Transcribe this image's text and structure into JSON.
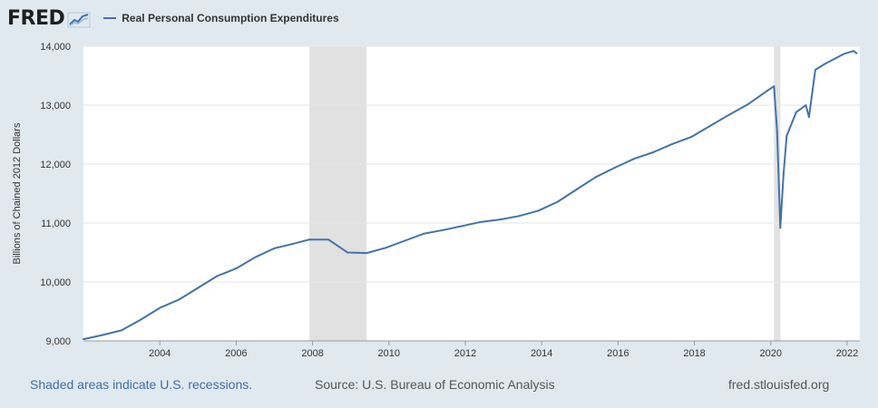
{
  "brand": {
    "logo_text": "FRED",
    "logo_icon": "fred-chart-icon"
  },
  "colors": {
    "series": "#4572a7",
    "recession": "#e1e1e1",
    "background": "#e1e9f0",
    "plot": "#ffffff",
    "grid": "#e6e6e6"
  },
  "chart_data": {
    "type": "line",
    "title": "",
    "xlabel": "",
    "ylabel": "Billions of Chained 2012 Dollars",
    "ylim": [
      9000,
      14000
    ],
    "xlim": [
      2002.0,
      2022.333
    ],
    "x_ticks": [
      2004,
      2006,
      2008,
      2010,
      2012,
      2014,
      2016,
      2018,
      2020,
      2022
    ],
    "x_tick_labels": [
      "2004",
      "2006",
      "2008",
      "2010",
      "2012",
      "2014",
      "2016",
      "2018",
      "2020",
      "2022"
    ],
    "y_ticks": [
      9000,
      10000,
      11000,
      12000,
      13000,
      14000
    ],
    "y_tick_labels": [
      "9,000",
      "10,000",
      "11,000",
      "12,000",
      "13,000",
      "14,000"
    ],
    "grid": true,
    "legend_position": "top-left",
    "recessions": [
      {
        "start": "2007-12",
        "end": "2009-06"
      },
      {
        "start": "2020-02",
        "end": "2020-04"
      }
    ],
    "series": [
      {
        "name": "Real Personal Consumption Expenditures",
        "x": [
          "2002-01",
          "2002-07",
          "2003-01",
          "2003-07",
          "2004-01",
          "2004-07",
          "2005-01",
          "2005-07",
          "2006-01",
          "2006-07",
          "2007-01",
          "2007-07",
          "2007-12",
          "2008-06",
          "2008-12",
          "2009-06",
          "2009-12",
          "2010-06",
          "2010-12",
          "2011-06",
          "2011-12",
          "2012-06",
          "2012-12",
          "2013-06",
          "2013-12",
          "2014-06",
          "2014-12",
          "2015-06",
          "2015-12",
          "2016-06",
          "2016-12",
          "2017-06",
          "2017-12",
          "2018-06",
          "2018-12",
          "2019-06",
          "2019-12",
          "2020-02",
          "2020-03",
          "2020-04",
          "2020-05",
          "2020-06",
          "2020-09",
          "2020-12",
          "2021-01",
          "2021-03",
          "2021-06",
          "2021-12",
          "2022-03",
          "2022-04"
        ],
        "y": [
          9030,
          9100,
          9180,
          9360,
          9560,
          9700,
          9900,
          10100,
          10230,
          10420,
          10570,
          10650,
          10720,
          10720,
          10500,
          10490,
          10580,
          10700,
          10820,
          10880,
          10950,
          11020,
          11060,
          11120,
          11210,
          11360,
          11570,
          11780,
          11940,
          12090,
          12200,
          12340,
          12460,
          12650,
          12840,
          13020,
          13250,
          13320,
          12550,
          10920,
          11820,
          12480,
          12880,
          13000,
          12800,
          13600,
          13700,
          13870,
          13920,
          13880
        ]
      }
    ]
  },
  "footer": {
    "recession_note": "Shaded areas indicate U.S. recessions.",
    "source": "Source: U.S. Bureau of Economic Analysis",
    "site": "fred.stlouisfed.org"
  }
}
